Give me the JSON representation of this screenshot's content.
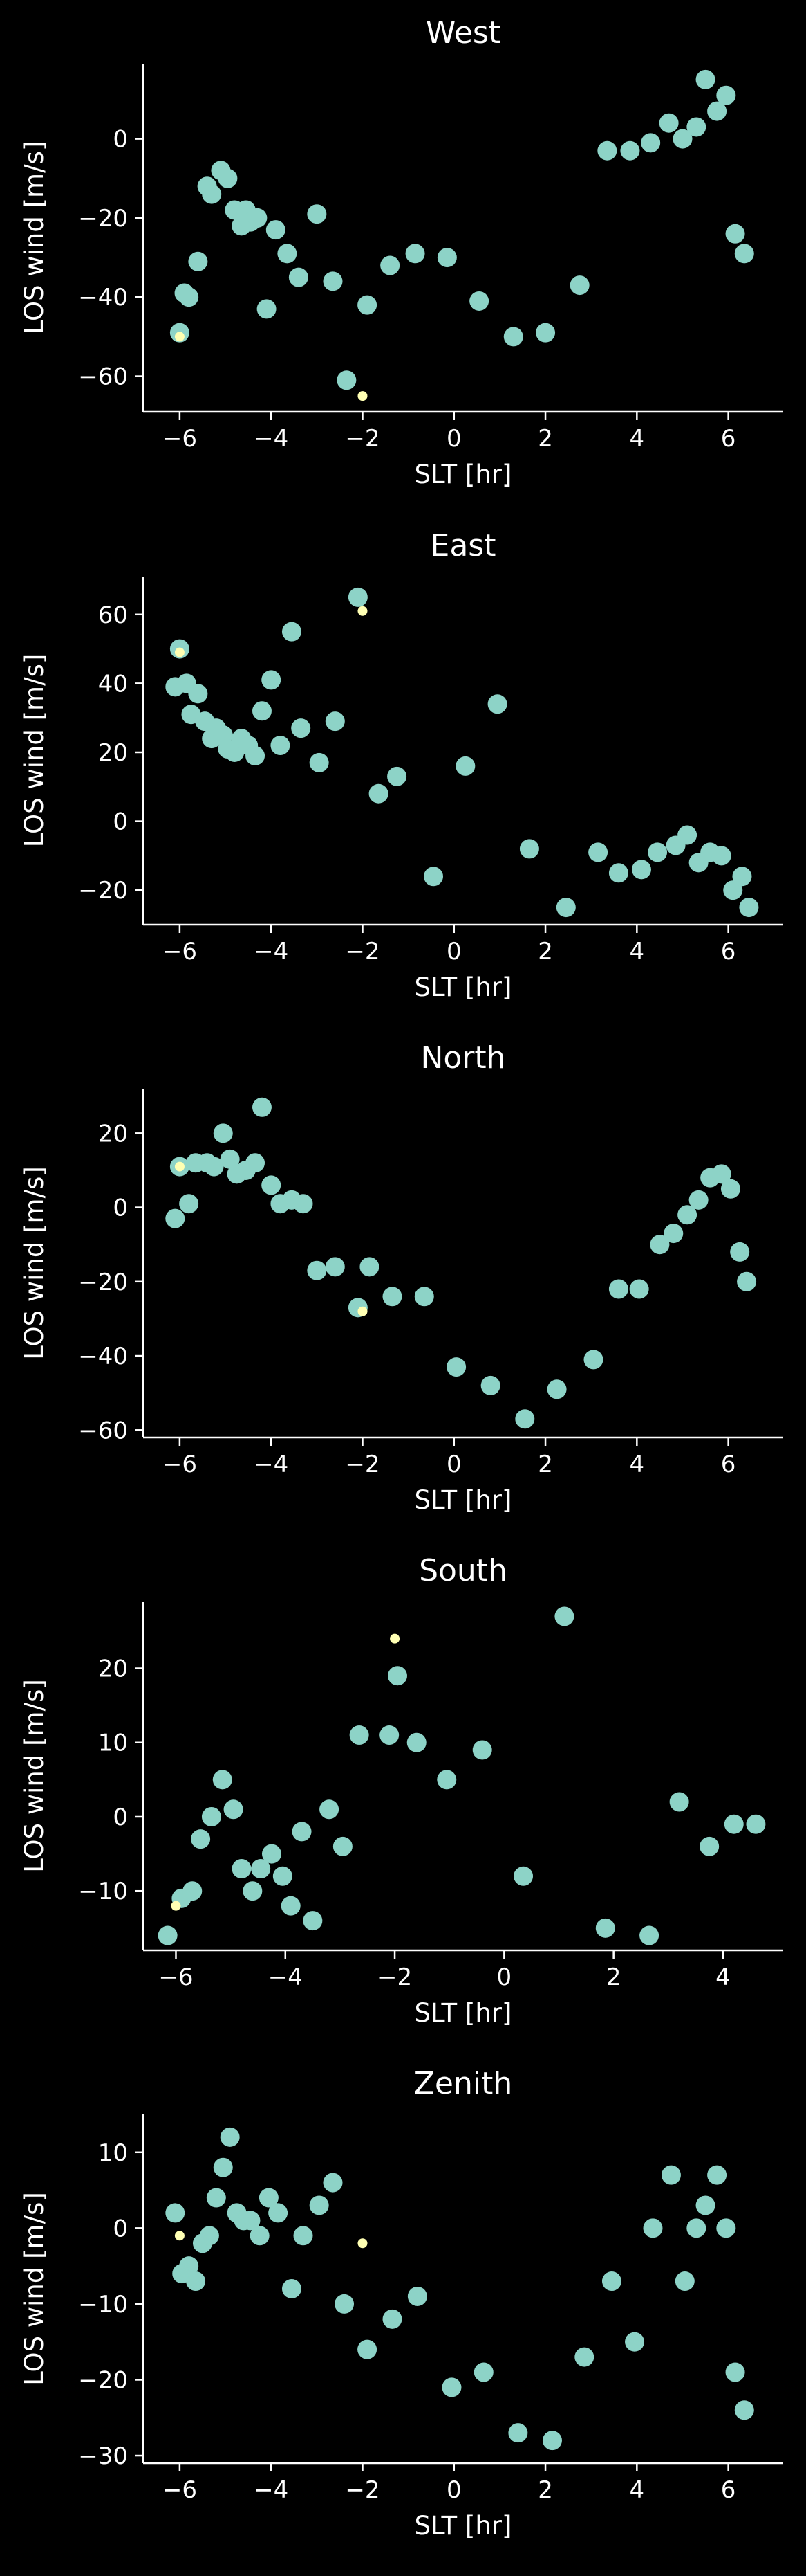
{
  "colors": {
    "background": "#000000",
    "foreground": "#ffffff",
    "series_main": "#8dd3c7",
    "series_highlight": "#ffffb3"
  },
  "chart_data": [
    {
      "type": "scatter",
      "title": "West",
      "xlabel": "SLT [hr]",
      "ylabel": "LOS wind [m/s]",
      "xlim": [
        -6.8,
        7.2
      ],
      "ylim": [
        -69,
        19
      ],
      "xticks": [
        -6,
        -4,
        -2,
        0,
        2,
        4,
        6
      ],
      "yticks": [
        -60,
        -40,
        -20,
        0
      ],
      "grid": false,
      "series": [
        {
          "color": "#8dd3c7",
          "x": [
            -6.0,
            -5.9,
            -5.8,
            -5.6,
            -5.4,
            -5.3,
            -5.1,
            -4.95,
            -4.8,
            -4.65,
            -4.55,
            -4.45,
            -4.3,
            -4.1,
            -3.9,
            -3.65,
            -3.4,
            -3.0,
            -2.65,
            -2.35,
            -1.9,
            -1.4,
            -0.85,
            -0.15,
            0.55,
            1.3,
            2.0,
            2.75,
            3.35,
            3.85,
            4.3,
            4.7,
            5.0,
            5.3,
            5.5,
            5.75,
            5.95,
            6.15,
            6.35
          ],
          "y": [
            -49,
            -39,
            -40,
            -31,
            -12,
            -14,
            -8,
            -10,
            -18,
            -22,
            -18,
            -21,
            -20,
            -43,
            -23,
            -29,
            -35,
            -19,
            -36,
            -61,
            -42,
            -32,
            -29,
            -30,
            -41,
            -50,
            -49,
            -37,
            -3,
            -3,
            -1,
            4,
            0,
            3,
            15,
            7,
            11,
            -24,
            -29
          ]
        },
        {
          "color": "#ffffb3",
          "x": [
            -6.0,
            -2.0
          ],
          "y": [
            -50,
            -65
          ]
        }
      ]
    },
    {
      "type": "scatter",
      "title": "East",
      "xlabel": "SLT [hr]",
      "ylabel": "LOS wind [m/s]",
      "xlim": [
        -6.8,
        7.2
      ],
      "ylim": [
        -30,
        71
      ],
      "xticks": [
        -6,
        -4,
        -2,
        0,
        2,
        4,
        6
      ],
      "yticks": [
        -20,
        0,
        20,
        40,
        60
      ],
      "grid": false,
      "series": [
        {
          "color": "#8dd3c7",
          "x": [
            -6.1,
            -6.0,
            -5.85,
            -5.75,
            -5.6,
            -5.45,
            -5.3,
            -5.2,
            -5.05,
            -4.95,
            -4.8,
            -4.65,
            -4.5,
            -4.35,
            -4.2,
            -4.0,
            -3.8,
            -3.55,
            -3.35,
            -2.95,
            -2.6,
            -2.1,
            -1.65,
            -1.25,
            -0.45,
            0.25,
            0.95,
            1.65,
            2.45,
            3.15,
            3.6,
            4.1,
            4.45,
            4.85,
            5.1,
            5.35,
            5.6,
            5.85,
            6.1,
            6.3,
            6.45
          ],
          "y": [
            39,
            50,
            40,
            31,
            37,
            29,
            24,
            27,
            25,
            21,
            20,
            24,
            22,
            19,
            32,
            41,
            22,
            55,
            27,
            17,
            29,
            65,
            8,
            13,
            -16,
            16,
            34,
            -8,
            -25,
            -9,
            -15,
            -14,
            -9,
            -7,
            -4,
            -12,
            -9,
            -10,
            -20,
            -16,
            -25
          ]
        },
        {
          "color": "#ffffb3",
          "x": [
            -6.0,
            -2.0
          ],
          "y": [
            49,
            61
          ]
        }
      ]
    },
    {
      "type": "scatter",
      "title": "North",
      "xlabel": "SLT [hr]",
      "ylabel": "LOS wind [m/s]",
      "xlim": [
        -6.8,
        7.2
      ],
      "ylim": [
        -62,
        32
      ],
      "xticks": [
        -6,
        -4,
        -2,
        0,
        2,
        4,
        6
      ],
      "yticks": [
        -60,
        -40,
        -20,
        0,
        20
      ],
      "grid": false,
      "series": [
        {
          "color": "#8dd3c7",
          "x": [
            -6.1,
            -6.0,
            -5.8,
            -5.65,
            -5.4,
            -5.25,
            -5.05,
            -4.9,
            -4.75,
            -4.55,
            -4.35,
            -4.2,
            -4.0,
            -3.8,
            -3.55,
            -3.3,
            -3.0,
            -2.6,
            -2.1,
            -1.85,
            -1.35,
            -0.65,
            0.05,
            0.8,
            1.55,
            2.25,
            3.05,
            3.6,
            4.05,
            4.5,
            4.8,
            5.1,
            5.35,
            5.6,
            5.85,
            6.05,
            6.25,
            6.4
          ],
          "y": [
            -3,
            11,
            1,
            12,
            12,
            11,
            20,
            13,
            9,
            10,
            12,
            27,
            6,
            1,
            2,
            1,
            -17,
            -16,
            -27,
            -16,
            -24,
            -24,
            -43,
            -48,
            -57,
            -49,
            -41,
            -22,
            -22,
            -10,
            -7,
            -2,
            2,
            8,
            9,
            5,
            -12,
            -20
          ]
        },
        {
          "color": "#ffffb3",
          "x": [
            -6.0,
            -2.0
          ],
          "y": [
            11,
            -28
          ]
        }
      ]
    },
    {
      "type": "scatter",
      "title": "South",
      "xlabel": "SLT [hr]",
      "ylabel": "LOS wind [m/s]",
      "xlim": [
        -6.6,
        5.1
      ],
      "ylim": [
        -18,
        29
      ],
      "xticks": [
        -6,
        -4,
        -2,
        0,
        2,
        4
      ],
      "yticks": [
        -10,
        0,
        10,
        20
      ],
      "grid": false,
      "series": [
        {
          "color": "#8dd3c7",
          "x": [
            -6.15,
            -5.9,
            -5.7,
            -5.55,
            -5.35,
            -5.15,
            -4.95,
            -4.8,
            -4.6,
            -4.45,
            -4.25,
            -4.05,
            -3.9,
            -3.7,
            -3.5,
            -3.2,
            -2.95,
            -2.65,
            -2.1,
            -1.95,
            -1.6,
            -1.05,
            -0.4,
            0.35,
            1.1,
            1.85,
            2.65,
            3.2,
            3.75,
            4.2,
            4.6
          ],
          "y": [
            -16,
            -11,
            -10,
            -3,
            0,
            5,
            1,
            -7,
            -10,
            -7,
            -5,
            -8,
            -12,
            -2,
            -14,
            1,
            -4,
            11,
            11,
            19,
            10,
            5,
            9,
            -8,
            27,
            -15,
            -16,
            2,
            -4,
            -1,
            -1
          ]
        },
        {
          "color": "#ffffb3",
          "x": [
            -6.0,
            -2.0
          ],
          "y": [
            -12,
            24
          ]
        }
      ]
    },
    {
      "type": "scatter",
      "title": "Zenith",
      "xlabel": "SLT [hr]",
      "ylabel": "LOS wind [m/s]",
      "xlim": [
        -6.8,
        7.2
      ],
      "ylim": [
        -31,
        15
      ],
      "xticks": [
        -6,
        -4,
        -2,
        0,
        2,
        4,
        6
      ],
      "yticks": [
        -30,
        -20,
        -10,
        0,
        10
      ],
      "grid": false,
      "series": [
        {
          "color": "#8dd3c7",
          "x": [
            -6.1,
            -5.95,
            -5.8,
            -5.65,
            -5.5,
            -5.35,
            -5.2,
            -5.05,
            -4.9,
            -4.75,
            -4.6,
            -4.45,
            -4.25,
            -4.05,
            -3.85,
            -3.55,
            -3.3,
            -2.95,
            -2.65,
            -2.4,
            -1.9,
            -1.35,
            -0.8,
            -0.05,
            0.65,
            1.4,
            2.15,
            2.85,
            3.45,
            3.95,
            4.35,
            4.75,
            5.05,
            5.3,
            5.5,
            5.75,
            5.95,
            6.15,
            6.35
          ],
          "y": [
            2,
            -6,
            -5,
            -7,
            -2,
            -1,
            4,
            8,
            12,
            2,
            1,
            1,
            -1,
            4,
            2,
            -8,
            -1,
            3,
            6,
            -10,
            -16,
            -12,
            -9,
            -21,
            -19,
            -27,
            -28,
            -17,
            -7,
            -15,
            0,
            7,
            -7,
            0,
            3,
            7,
            0,
            -19,
            -24
          ]
        },
        {
          "color": "#ffffb3",
          "x": [
            -6.0,
            -2.0
          ],
          "y": [
            -1,
            -2
          ]
        }
      ]
    }
  ]
}
